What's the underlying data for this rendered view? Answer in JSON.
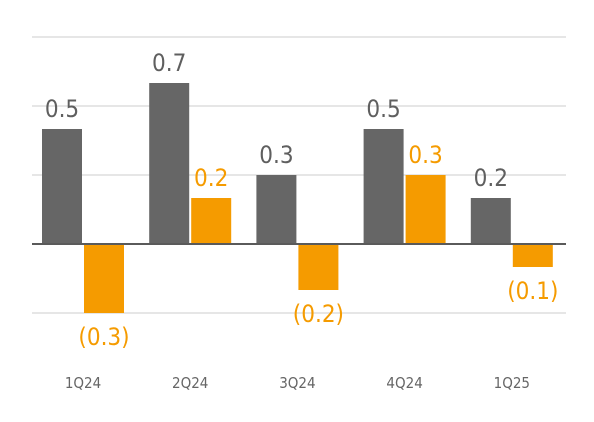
{
  "chart_data": {
    "type": "bar",
    "categories": [
      "1Q24",
      "2Q24",
      "3Q24",
      "4Q24",
      "1Q25"
    ],
    "series": [
      {
        "values": [
          0.5,
          0.7,
          0.3,
          0.5,
          0.2
        ],
        "labels": [
          "0.5",
          "0.7",
          "0.3",
          "0.5",
          "0.2"
        ],
        "color": "#666666"
      },
      {
        "values": [
          -0.3,
          0.2,
          -0.2,
          0.3,
          -0.1
        ],
        "labels": [
          "(0.3)",
          "0.2",
          "(0.2)",
          "0.3",
          "(0.1)"
        ],
        "color": "#f59b00"
      }
    ],
    "title": "",
    "xlabel": "",
    "ylabel": "",
    "ylim": [
      -0.5,
      1.0
    ],
    "gridlines": [
      -0.3,
      0.3,
      0.6,
      0.9
    ],
    "legend": "none"
  }
}
